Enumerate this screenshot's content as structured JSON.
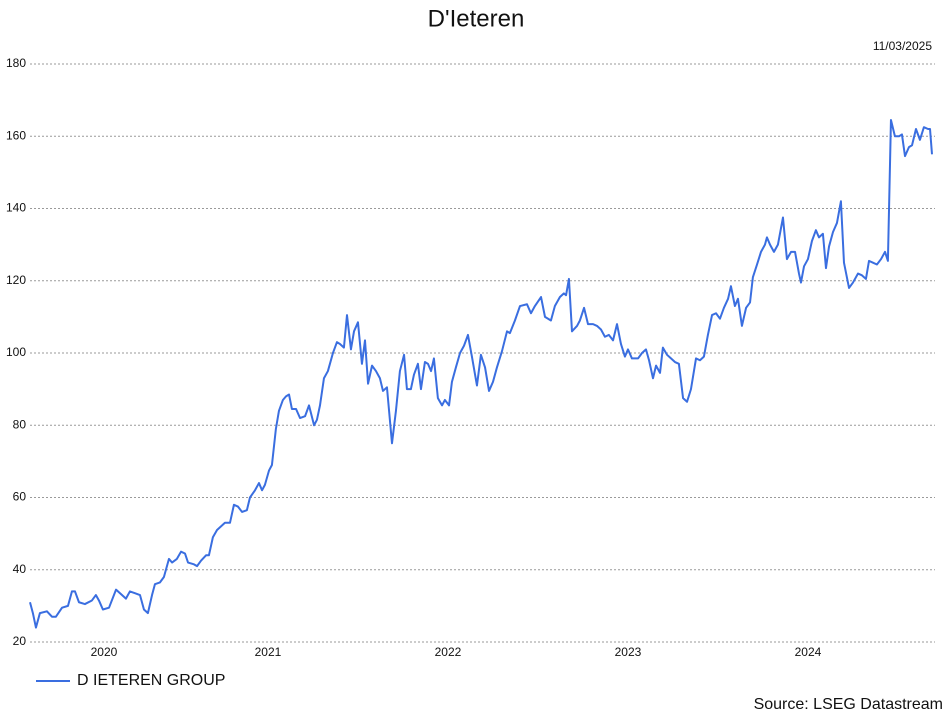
{
  "chart_data": {
    "type": "line",
    "title": "D'Ieteren",
    "date": "11/03/2025",
    "source": "Source: LSEG Datastream",
    "xlim": [
      2020.178,
      2025.189
    ],
    "xticks": [
      2020,
      2021,
      2022,
      2023,
      2024
    ],
    "ylim": [
      20,
      180
    ],
    "yticks": [
      20,
      40,
      60,
      80,
      100,
      120,
      140,
      160,
      180
    ],
    "grid": true,
    "legend": "bottom-left",
    "series": [
      {
        "name": "D IETEREN GROUP",
        "color": "#3a6ee0",
        "x": [
          2020.178,
          2020.194,
          2020.211,
          2020.233,
          2020.272,
          2020.3,
          2020.322,
          2020.356,
          2020.389,
          2020.411,
          2020.428,
          2020.45,
          2020.483,
          2020.522,
          2020.544,
          2020.561,
          2020.583,
          2020.617,
          2020.656,
          2020.689,
          2020.711,
          2020.733,
          2020.761,
          2020.789,
          2020.811,
          2020.833,
          2020.856,
          2020.872,
          2020.9,
          2020.922,
          2020.95,
          2020.967,
          2020.994,
          2021.017,
          2021.039,
          2021.056,
          2021.089,
          2021.106,
          2021.128,
          2021.156,
          2021.172,
          2021.194,
          2021.217,
          2021.239,
          2021.261,
          2021.289,
          2021.311,
          2021.333,
          2021.356,
          2021.383,
          2021.4,
          2021.428,
          2021.45,
          2021.467,
          2021.483,
          2021.506,
          2021.522,
          2021.544,
          2021.561,
          2021.583,
          2021.6,
          2021.617,
          2021.633,
          2021.656,
          2021.678,
          2021.706,
          2021.728,
          2021.756,
          2021.772,
          2021.789,
          2021.811,
          2021.833,
          2021.861,
          2021.883,
          2021.9,
          2021.922,
          2021.939,
          2021.961,
          2021.978,
          2022.0,
          2022.022,
          2022.039,
          2022.056,
          2022.078,
          2022.1,
          2022.122,
          2022.139,
          2022.161,
          2022.189,
          2022.211,
          2022.233,
          2022.256,
          2022.272,
          2022.294,
          2022.311,
          2022.333,
          2022.35,
          2022.372,
          2022.389,
          2022.406,
          2022.422,
          2022.444,
          2022.467,
          2022.483,
          2022.506,
          2022.522,
          2022.544,
          2022.567,
          2022.589,
          2022.611,
          2022.633,
          2022.661,
          2022.683,
          2022.706,
          2022.728,
          2022.75,
          2022.772,
          2022.8,
          2022.828,
          2022.844,
          2022.872,
          2022.9,
          2022.939,
          2022.961,
          2022.983,
          2023.017,
          2023.039,
          2023.072,
          2023.094,
          2023.122,
          2023.144,
          2023.156,
          2023.172,
          2023.189,
          2023.217,
          2023.233,
          2023.256,
          2023.278,
          2023.306,
          2023.328,
          2023.35,
          2023.372,
          2023.394,
          2023.417,
          2023.439,
          2023.461,
          2023.483,
          2023.5,
          2023.522,
          2023.556,
          2023.578,
          2023.6,
          2023.617,
          2023.639,
          2023.656,
          2023.678,
          2023.694,
          2023.717,
          2023.739,
          2023.761,
          2023.783,
          2023.806,
          2023.828,
          2023.85,
          2023.878,
          2023.9,
          2023.922,
          2023.944,
          2023.967,
          2023.989,
          2024.011,
          2024.033,
          2024.056,
          2024.072,
          2024.094,
          2024.111,
          2024.133,
          2024.156,
          2024.178,
          2024.194,
          2024.217,
          2024.239,
          2024.261,
          2024.272,
          2024.289,
          2024.311,
          2024.333,
          2024.361,
          2024.383,
          2024.406,
          2024.428,
          2024.45,
          2024.461,
          2024.478,
          2024.5,
          2024.522,
          2024.544,
          2024.561,
          2024.583,
          2024.6,
          2024.617,
          2024.639,
          2024.661,
          2024.683,
          2024.7,
          2024.728,
          2024.75,
          2024.778,
          2024.8,
          2024.822,
          2024.839,
          2024.861,
          2024.883,
          2024.906,
          2024.928,
          2024.944,
          2024.961,
          2024.983,
          2025.006,
          2025.022,
          2025.039,
          2025.061,
          2025.078,
          2025.1,
          2025.122,
          2025.144,
          2025.167,
          2025.178,
          2025.189
        ],
        "values": [
          31,
          28,
          24,
          28,
          28.5,
          27,
          27,
          29.5,
          30,
          34,
          34,
          31,
          30.5,
          31.5,
          33,
          31.5,
          29,
          29.5,
          34.5,
          33,
          32,
          34,
          33.5,
          33,
          29,
          28,
          33,
          36,
          36.5,
          38,
          43,
          42,
          43,
          45,
          44.5,
          42,
          41.5,
          41,
          42.5,
          44,
          44,
          49,
          51,
          52,
          53,
          53,
          58,
          57.5,
          56,
          56.5,
          60,
          62,
          64,
          62,
          63.5,
          67.5,
          69,
          79,
          84,
          87,
          88,
          88.5,
          84.5,
          84.5,
          82,
          82.5,
          85.5,
          80,
          81.5,
          85.5,
          93,
          95,
          100,
          103,
          102.5,
          101.5,
          110.5,
          101,
          106,
          108.5,
          97,
          103.5,
          91.5,
          96.5,
          95,
          93,
          89.5,
          90.5,
          75,
          84,
          95,
          99.5,
          90,
          90,
          94,
          97,
          90,
          97.5,
          97,
          95,
          98.5,
          87.5,
          85.5,
          87,
          85.5,
          92,
          96,
          100,
          102,
          105,
          99,
          91,
          99.5,
          96,
          89.5,
          92,
          96,
          100.5,
          106,
          105.5,
          109,
          113,
          113.5,
          111,
          113,
          115.5,
          110,
          109,
          113,
          115.5,
          116.5,
          116,
          120.5,
          106,
          107.5,
          109,
          112.5,
          108,
          108,
          107.5,
          106.5,
          104.5,
          105,
          103.5,
          108,
          102.5,
          99,
          101,
          98.5,
          98.5,
          100,
          101,
          98,
          93,
          96.5,
          94.5,
          101.5,
          99.5,
          98.5,
          97.5,
          97,
          87.5,
          86.5,
          90,
          98.5,
          98,
          99,
          105,
          110.5,
          111,
          109.5,
          112.5,
          115,
          118.5,
          113,
          115,
          107.5,
          112.5,
          114,
          121,
          124.5,
          128,
          130,
          132,
          130,
          128,
          130,
          137.5,
          126,
          128,
          128,
          122,
          119.5,
          124,
          126,
          131,
          134,
          132,
          133,
          123.5,
          129.5,
          133.5,
          136,
          142,
          125,
          118,
          119.5,
          122,
          121.5,
          120.5,
          125.5,
          125,
          124.5,
          126,
          128,
          125.5,
          164.5,
          160,
          160,
          160.5,
          154.5,
          157,
          157.5,
          162,
          159,
          162.5,
          162,
          162,
          155
        ]
      }
    ]
  }
}
